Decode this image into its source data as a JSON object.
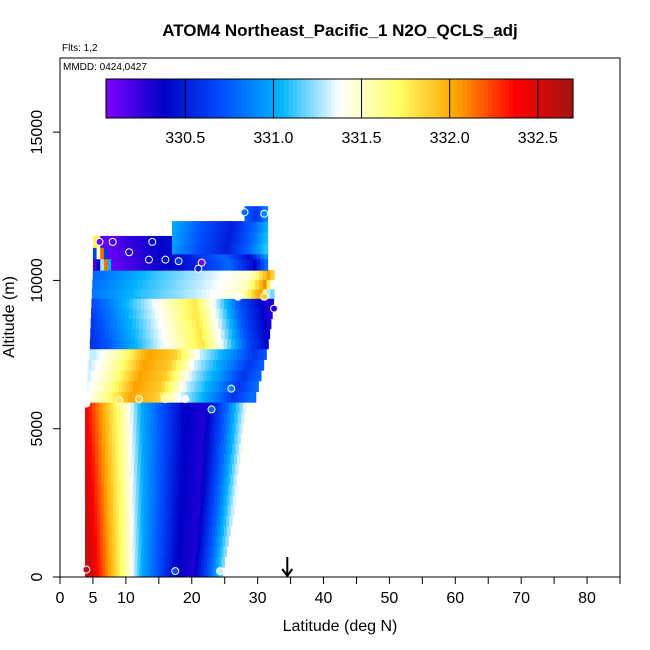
{
  "chart_data": {
    "type": "heatmap",
    "title": "ATOM4 Northeast_Pacific_1 N2O_QCLS_adj",
    "notes": {
      "flights": "Flts: 1,2",
      "dates": "MMDD: 0424,0427"
    },
    "xlabel": "Latitude (deg N)",
    "ylabel": "Altitude (m)",
    "xlim": [
      0,
      85
    ],
    "ylim": [
      0,
      17500
    ],
    "x_ticks": [
      0,
      5,
      10,
      20,
      30,
      40,
      50,
      60,
      70,
      80
    ],
    "x_minor_ticks": [
      15,
      25,
      35,
      45,
      55,
      65,
      75,
      85
    ],
    "y_ticks": [
      0,
      5000,
      10000,
      15000
    ],
    "colorbar": {
      "range": [
        330.05,
        332.7
      ],
      "ticks": [
        330.5,
        331.0,
        331.5,
        332.0,
        332.5
      ],
      "tick_labels": [
        "330.5",
        "331.0",
        "331.5",
        "332.0",
        "332.5"
      ],
      "colors": [
        "#7f00ff",
        "#0000c8",
        "#0050ff",
        "#00b4ff",
        "#ffffff",
        "#ffff66",
        "#ffa500",
        "#ff0000",
        "#a01414"
      ]
    },
    "marker_latitude": 34.5,
    "profiles": [
      {
        "y0": 0,
        "y1": 5900,
        "x0_bottom": 3.8,
        "x0_top": 3.8,
        "x1_bottom": 24.5,
        "x1_top": 29.5,
        "stops": [
          [
            0.0,
            332.55
          ],
          [
            0.15,
            332.0
          ],
          [
            0.28,
            331.5
          ],
          [
            0.38,
            331.0
          ],
          [
            0.5,
            330.7
          ],
          [
            0.62,
            330.4
          ],
          [
            0.75,
            330.3
          ],
          [
            0.88,
            330.8
          ],
          [
            1.0,
            331.4
          ]
        ]
      },
      {
        "y0": 5900,
        "y1": 7700,
        "x0_bottom": 3.8,
        "x0_top": 4.5,
        "x1_bottom": 29.5,
        "x1_top": 31.5,
        "stops": [
          [
            0.0,
            331.3
          ],
          [
            0.15,
            331.6
          ],
          [
            0.3,
            332.05
          ],
          [
            0.45,
            331.9
          ],
          [
            0.6,
            331.3
          ],
          [
            0.78,
            330.9
          ],
          [
            0.9,
            330.6
          ],
          [
            1.0,
            330.8
          ]
        ]
      },
      {
        "y0": 7700,
        "y1": 9400,
        "x0_bottom": 4.5,
        "x0_top": 4.8,
        "x1_bottom": 31.5,
        "x1_top": 32.5,
        "stops": [
          [
            0.0,
            330.6
          ],
          [
            0.2,
            331.0
          ],
          [
            0.45,
            331.5
          ],
          [
            0.6,
            331.8
          ],
          [
            0.72,
            331.3
          ],
          [
            0.85,
            330.7
          ],
          [
            1.0,
            330.3
          ]
        ]
      },
      {
        "y0": 9400,
        "y1": 10350,
        "x0_bottom": 4.8,
        "x0_top": 5.0,
        "x1_bottom": 32.5,
        "x1_top": 32.5,
        "stops": [
          [
            0.0,
            330.8
          ],
          [
            0.3,
            331.1
          ],
          [
            0.6,
            331.3
          ],
          [
            0.85,
            331.5
          ],
          [
            0.95,
            332.1
          ],
          [
            1.0,
            331.2
          ]
        ]
      },
      {
        "y0": 10350,
        "y1": 11500,
        "x0_bottom": 5.0,
        "x0_top": 5.0,
        "x1_bottom": 31.5,
        "x1_top": 31.5,
        "stops": [
          [
            0.0,
            330.2
          ],
          [
            0.05,
            332.3
          ],
          [
            0.08,
            330.1
          ],
          [
            0.3,
            330.3
          ],
          [
            0.55,
            330.5
          ],
          [
            0.75,
            330.8
          ],
          [
            0.9,
            330.4
          ],
          [
            1.0,
            331.0
          ]
        ]
      },
      {
        "y0": 10900,
        "y1": 12000,
        "x0_bottom": 17.0,
        "x0_top": 17.0,
        "x1_bottom": 31.5,
        "x1_top": 31.5,
        "stops": [
          [
            0.0,
            331.0
          ],
          [
            0.3,
            330.7
          ],
          [
            0.6,
            330.5
          ],
          [
            0.85,
            330.8
          ],
          [
            1.0,
            331.1
          ]
        ]
      },
      {
        "y0": 12000,
        "y1": 12500,
        "x0_bottom": 28.0,
        "x0_top": 28.0,
        "x1_bottom": 31.5,
        "x1_top": 31.5,
        "stops": [
          [
            0.0,
            330.8
          ],
          [
            0.5,
            330.6
          ],
          [
            1.0,
            330.9
          ]
        ]
      }
    ],
    "observations": [
      {
        "lat": 4.0,
        "alt": 250,
        "value": 332.6
      },
      {
        "lat": 17.5,
        "alt": 200,
        "value": 330.7
      },
      {
        "lat": 24.3,
        "alt": 200,
        "value": 331.3
      },
      {
        "lat": 4.0,
        "alt": 5850,
        "value": 331.4
      },
      {
        "lat": 9.0,
        "alt": 5950,
        "value": 331.8
      },
      {
        "lat": 12.0,
        "alt": 6000,
        "value": 331.9
      },
      {
        "lat": 16.0,
        "alt": 6000,
        "value": 331.6
      },
      {
        "lat": 19.0,
        "alt": 6000,
        "value": 331.4
      },
      {
        "lat": 23.0,
        "alt": 5650,
        "value": 330.8
      },
      {
        "lat": 26.0,
        "alt": 6350,
        "value": 330.9
      },
      {
        "lat": 27.0,
        "alt": 9450,
        "value": 331.4
      },
      {
        "lat": 31.0,
        "alt": 9450,
        "value": 331.9
      },
      {
        "lat": 32.5,
        "alt": 9050,
        "value": 330.3
      },
      {
        "lat": 6.0,
        "alt": 11300,
        "value": 330.1
      },
      {
        "lat": 8.0,
        "alt": 11300,
        "value": 330.2
      },
      {
        "lat": 14.0,
        "alt": 11300,
        "value": 330.4
      },
      {
        "lat": 10.5,
        "alt": 10950,
        "value": 330.3
      },
      {
        "lat": 13.5,
        "alt": 10700,
        "value": 330.4
      },
      {
        "lat": 16.0,
        "alt": 10700,
        "value": 330.4
      },
      {
        "lat": 18.0,
        "alt": 10650,
        "value": 330.6
      },
      {
        "lat": 21.5,
        "alt": 10600,
        "value": 330.1
      },
      {
        "lat": 21.0,
        "alt": 10400,
        "value": 330.5
      },
      {
        "lat": 28.0,
        "alt": 12300,
        "value": 330.8
      },
      {
        "lat": 31.0,
        "alt": 12250,
        "value": 330.9
      }
    ]
  }
}
